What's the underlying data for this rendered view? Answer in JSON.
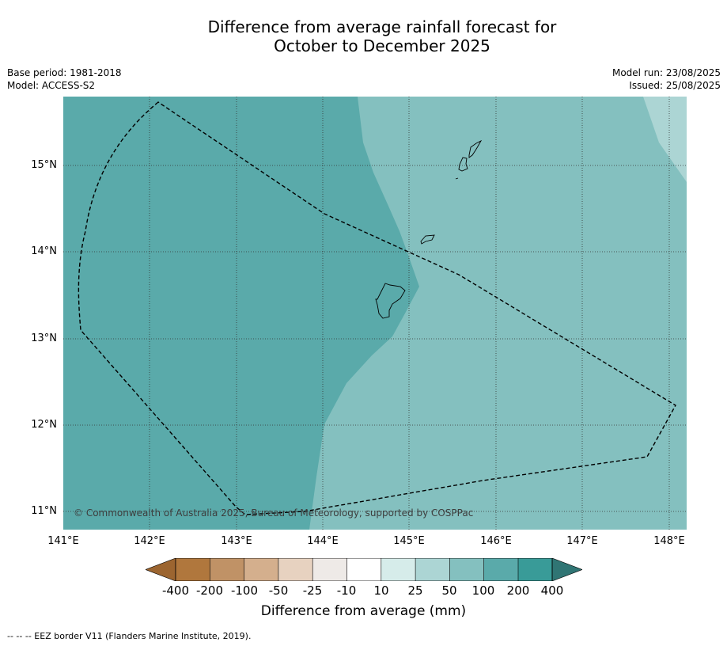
{
  "title": {
    "line1": "Difference from average rainfall forecast for",
    "line2": "October to December 2025"
  },
  "meta": {
    "base_period": "Base period: 1981-2018",
    "model": "Model: ACCESS-S2",
    "model_run": "Model run: 23/08/2025",
    "issued": "Issued: 25/08/2025"
  },
  "map": {
    "lon_labels": [
      "141°E",
      "142°E",
      "143°E",
      "144°E",
      "145°E",
      "146°E",
      "147°E",
      "148°E"
    ],
    "lat_labels": [
      "15°N",
      "14°N",
      "13°N",
      "12°N",
      "11°N"
    ],
    "copyright": "© Commonwealth of Australia 2025, Bureau of Meteorology, supported by COSPPac",
    "colors": {
      "band_100_200": "#5aaaaa",
      "band_50_100": "#84c0bf",
      "band_25_50": "#acd5d4"
    }
  },
  "colorbar": {
    "labels": [
      "-400",
      "-200",
      "-100",
      "-50",
      "-25",
      "-10",
      "10",
      "25",
      "50",
      "100",
      "200",
      "400"
    ],
    "colors": [
      "#9c6530",
      "#b0773d",
      "#c09266",
      "#d4af8d",
      "#e7d2c0",
      "#eeeae7",
      "#ffffff",
      "#d6ecea",
      "#acd5d4",
      "#84c0bf",
      "#5aaaaa",
      "#399b98",
      "#307574"
    ],
    "title": "Difference from average (mm)"
  },
  "footnote": "--  --  -- EEZ border V11 (Flanders Marine Institute, 2019)."
}
